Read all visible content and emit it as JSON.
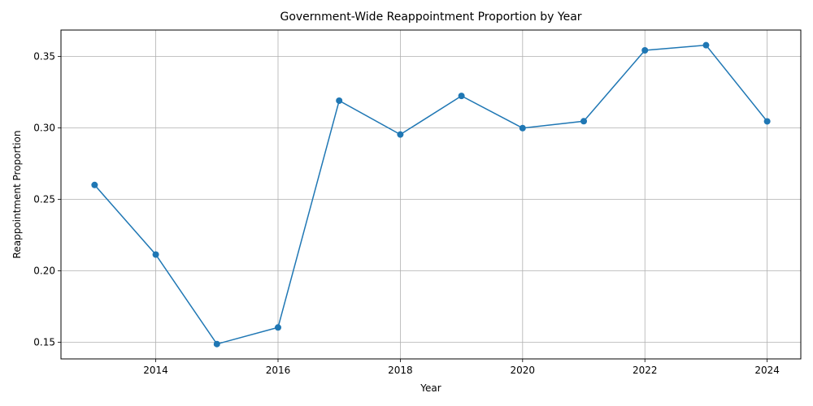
{
  "chart_data": {
    "type": "line",
    "title": "Government-Wide Reappointment Proportion by Year",
    "xlabel": "Year",
    "ylabel": "Reappointment Proportion",
    "x": [
      2013,
      2014,
      2015,
      2016,
      2017,
      2018,
      2019,
      2020,
      2021,
      2022,
      2023,
      2024
    ],
    "series": [
      {
        "values": [
          0.26,
          0.2113,
          0.1487,
          0.1603,
          0.319,
          0.2953,
          0.3223,
          0.2998,
          0.3046,
          0.3542,
          0.3578,
          0.3045
        ]
      }
    ],
    "xlim": [
      2012.45,
      2024.55
    ],
    "ylim": [
      0.1383,
      0.3684
    ],
    "xticks": [
      2014,
      2016,
      2018,
      2020,
      2022,
      2024
    ],
    "yticks": [
      0.15,
      0.2,
      0.25,
      0.3,
      0.35
    ],
    "ytick_labels": [
      "0.15",
      "0.20",
      "0.25",
      "0.30",
      "0.35"
    ],
    "grid": true,
    "marker": "circle",
    "line_color": "#1f77b4",
    "grid_color": "#b0b0b0"
  }
}
